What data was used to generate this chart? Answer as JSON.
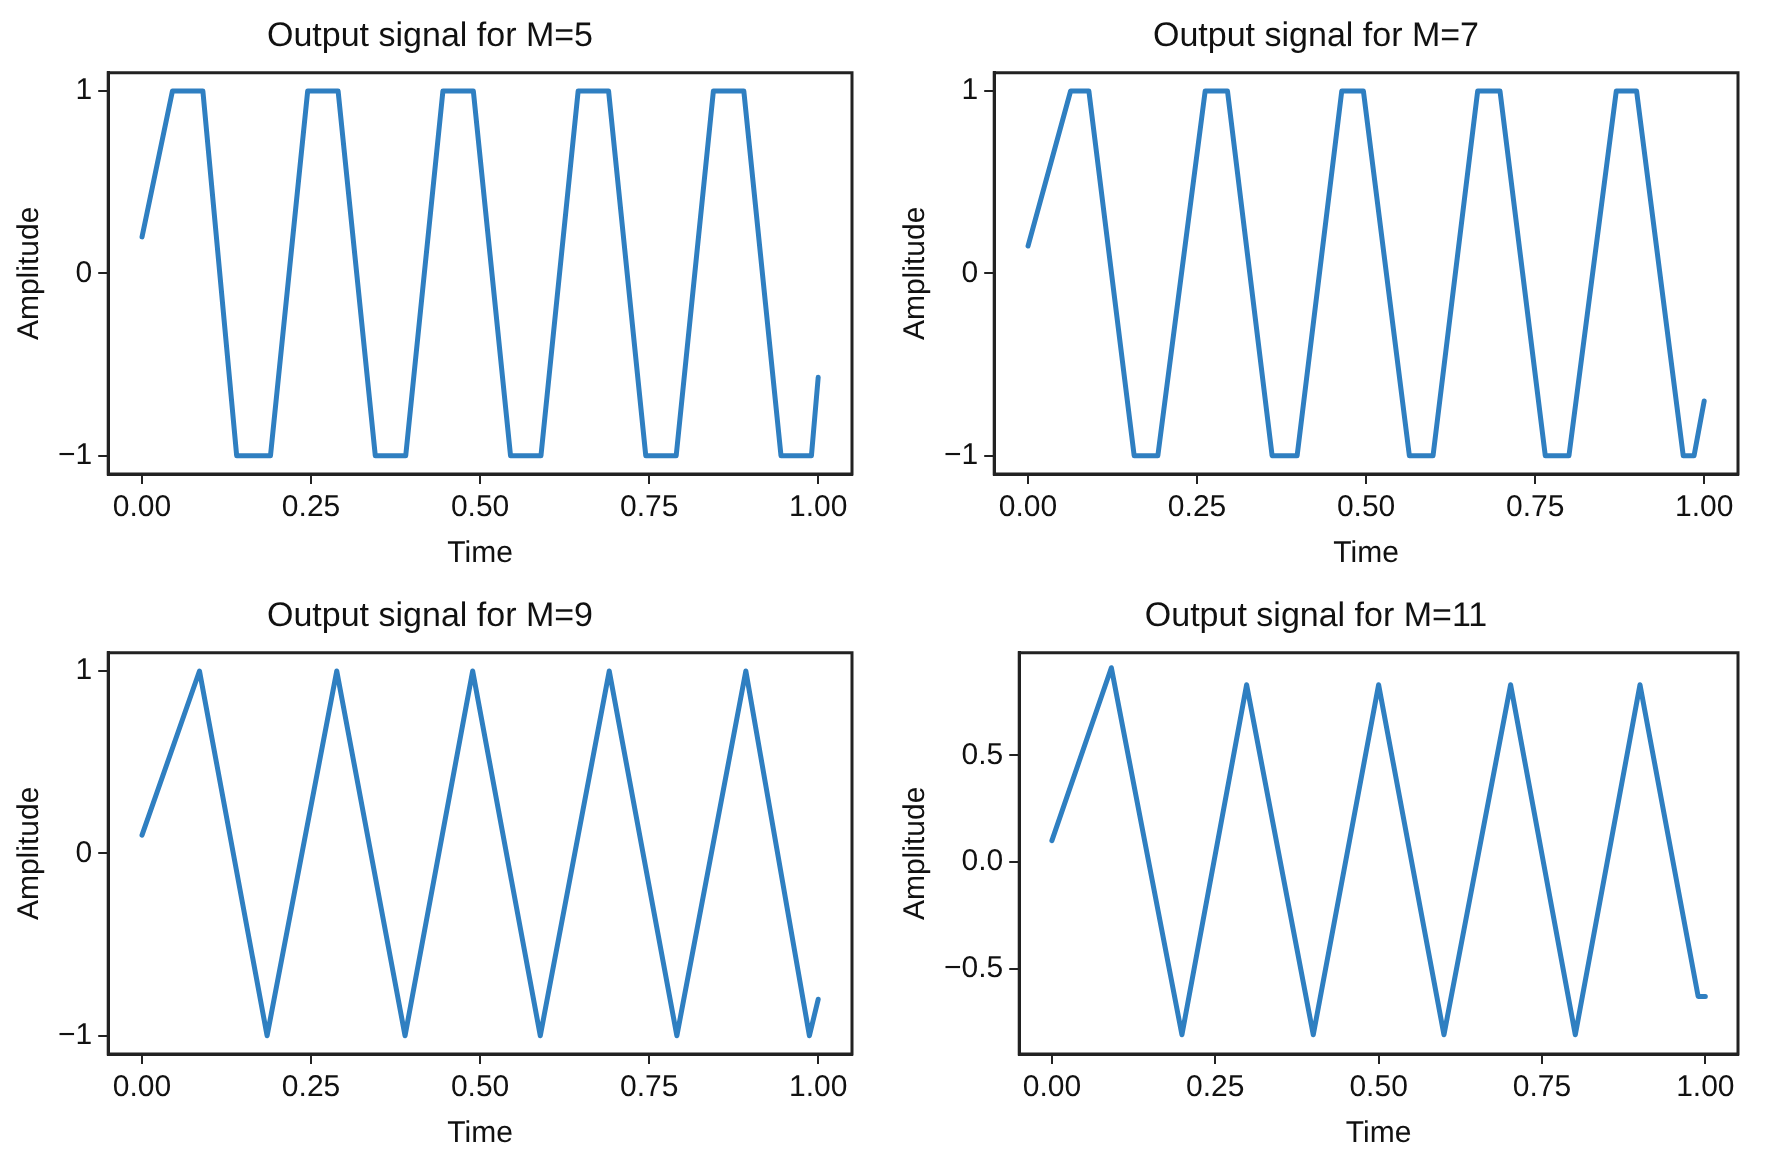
{
  "chart_data": [
    {
      "type": "line",
      "title": "Output signal for M=5",
      "xlabel": "Time",
      "ylabel": "Amplitude",
      "grid": false,
      "marker": "none",
      "line_style": "solid",
      "xlim": [
        -0.05,
        1.05
      ],
      "ylim": [
        -1.1,
        1.1
      ],
      "xticks": [
        {
          "value": 0,
          "label": "0.00"
        },
        {
          "value": 0.25,
          "label": "0.25"
        },
        {
          "value": 0.5,
          "label": "0.50"
        },
        {
          "value": 0.75,
          "label": "0.75"
        },
        {
          "value": 1,
          "label": "1.00"
        }
      ],
      "yticks": [
        {
          "value": -1,
          "label": "−1"
        },
        0,
        1
      ],
      "series": [
        {
          "color": "#2f7fc1",
          "x": [
            0,
            0.045,
            0.09,
            0.14,
            0.19,
            0.245,
            0.29,
            0.345,
            0.39,
            0.445,
            0.49,
            0.545,
            0.59,
            0.645,
            0.69,
            0.745,
            0.79,
            0.845,
            0.89,
            0.945,
            0.99,
            1.0
          ],
          "values": [
            0.2,
            1,
            1,
            -1,
            -1,
            1,
            1,
            -1,
            -1,
            1,
            1,
            -1,
            -1,
            1,
            1,
            -1,
            -1,
            1,
            1,
            -1,
            -1,
            -0.57
          ]
        }
      ]
    },
    {
      "type": "line",
      "title": "Output signal for M=7",
      "xlabel": "Time",
      "ylabel": "Amplitude",
      "grid": false,
      "marker": "none",
      "line_style": "solid",
      "xlim": [
        -0.05,
        1.05
      ],
      "ylim": [
        -1.1,
        1.1
      ],
      "xticks": [
        {
          "value": 0,
          "label": "0.00"
        },
        {
          "value": 0.25,
          "label": "0.25"
        },
        {
          "value": 0.5,
          "label": "0.50"
        },
        {
          "value": 0.75,
          "label": "0.75"
        },
        {
          "value": 1,
          "label": "1.00"
        }
      ],
      "yticks": [
        {
          "value": -1,
          "label": "−1"
        },
        0,
        1
      ],
      "series": [
        {
          "color": "#2f7fc1",
          "x": [
            0,
            0.063,
            0.09,
            0.157,
            0.192,
            0.262,
            0.295,
            0.361,
            0.398,
            0.464,
            0.496,
            0.564,
            0.599,
            0.665,
            0.698,
            0.765,
            0.8,
            0.87,
            0.9,
            0.969,
            0.985,
            1.0
          ],
          "values": [
            0.15,
            1,
            1,
            -1,
            -1,
            1,
            1,
            -1,
            -1,
            1,
            1,
            -1,
            -1,
            1,
            1,
            -1,
            -1,
            1,
            1,
            -1,
            -1,
            -0.7
          ]
        }
      ]
    },
    {
      "type": "line",
      "title": "Output signal for M=9",
      "xlabel": "Time",
      "ylabel": "Amplitude",
      "grid": false,
      "marker": "none",
      "line_style": "solid",
      "xlim": [
        -0.05,
        1.05
      ],
      "ylim": [
        -1.1,
        1.1
      ],
      "xticks": [
        {
          "value": 0,
          "label": "0.00"
        },
        {
          "value": 0.25,
          "label": "0.25"
        },
        {
          "value": 0.5,
          "label": "0.50"
        },
        {
          "value": 0.75,
          "label": "0.75"
        },
        {
          "value": 1,
          "label": "1.00"
        }
      ],
      "yticks": [
        {
          "value": -1,
          "label": "−1"
        },
        0,
        1
      ],
      "series": [
        {
          "color": "#2f7fc1",
          "x": [
            0,
            0.085,
            0.185,
            0.288,
            0.389,
            0.489,
            0.589,
            0.691,
            0.791,
            0.893,
            0.987,
            1.0
          ],
          "values": [
            0.1,
            1,
            -1,
            1,
            -1,
            1,
            -1,
            1,
            -1,
            1,
            -1,
            -0.8
          ]
        }
      ]
    },
    {
      "type": "line",
      "title": "Output signal for M=11",
      "xlabel": "Time",
      "ylabel": "Amplitude",
      "grid": false,
      "marker": "none",
      "line_style": "solid",
      "xlim": [
        -0.05,
        1.05
      ],
      "ylim": [
        -0.9,
        0.98
      ],
      "xticks": [
        {
          "value": 0,
          "label": "0.00"
        },
        {
          "value": 0.25,
          "label": "0.25"
        },
        {
          "value": 0.5,
          "label": "0.50"
        },
        {
          "value": 0.75,
          "label": "0.75"
        },
        {
          "value": 1,
          "label": "1.00"
        }
      ],
      "yticks": [
        {
          "value": -0.5,
          "label": "−0.5"
        },
        {
          "value": 0,
          "label": "0.0"
        },
        0.5
      ],
      "series": [
        {
          "color": "#2f7fc1",
          "x": [
            0,
            0.091,
            0.199,
            0.298,
            0.4,
            0.5,
            0.6,
            0.702,
            0.801,
            0.9,
            0.989,
            1.0
          ],
          "values": [
            0.1,
            0.91,
            -0.81,
            0.83,
            -0.81,
            0.83,
            -0.81,
            0.83,
            -0.81,
            0.83,
            -0.63,
            -0.63
          ]
        }
      ]
    }
  ]
}
